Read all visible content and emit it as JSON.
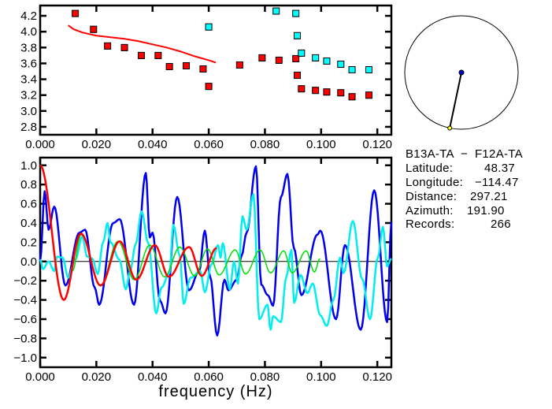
{
  "chart_data": [
    {
      "type": "scatter",
      "xlim": [
        0,
        0.125
      ],
      "ylim": [
        2.7,
        4.33
      ],
      "x_ticks": [
        "0.000",
        "0.020",
        "0.040",
        "0.060",
        "0.080",
        "0.100",
        "0.120"
      ],
      "y_ticks": [
        "2.8",
        "3.0",
        "3.2",
        "3.4",
        "3.6",
        "3.8",
        "4.0",
        "4.2"
      ],
      "grid": false,
      "series": [
        {
          "color": "#ff0000",
          "marker": "square",
          "points": [
            [
              0.0125,
              4.23
            ],
            [
              0.019,
              4.03
            ],
            [
              0.024,
              3.82
            ],
            [
              0.03,
              3.8
            ],
            [
              0.036,
              3.7
            ],
            [
              0.042,
              3.7
            ],
            [
              0.046,
              3.56
            ],
            [
              0.052,
              3.57
            ],
            [
              0.058,
              3.53
            ],
            [
              0.06,
              3.31
            ],
            [
              0.071,
              3.58
            ],
            [
              0.079,
              3.67
            ],
            [
              0.085,
              3.64
            ],
            [
              0.091,
              3.66
            ],
            [
              0.0915,
              3.45
            ],
            [
              0.093,
              3.28
            ],
            [
              0.098,
              3.26
            ],
            [
              0.102,
              3.24
            ],
            [
              0.107,
              3.23
            ],
            [
              0.111,
              3.18
            ],
            [
              0.117,
              3.2
            ]
          ]
        },
        {
          "color": "#00ffff",
          "marker": "square",
          "points": [
            [
              0.06,
              4.06
            ],
            [
              0.084,
              4.26
            ],
            [
              0.091,
              4.23
            ],
            [
              0.0915,
              3.95
            ],
            [
              0.093,
              3.73
            ],
            [
              0.098,
              3.67
            ],
            [
              0.102,
              3.63
            ],
            [
              0.107,
              3.59
            ],
            [
              0.111,
              3.52
            ],
            [
              0.117,
              3.52
            ]
          ]
        },
        {
          "color": "#ff0000",
          "marker": "line",
          "points": [
            [
              0.01,
              4.08
            ],
            [
              0.012,
              4.03
            ],
            [
              0.015,
              3.99
            ],
            [
              0.02,
              3.95
            ],
            [
              0.025,
              3.93
            ],
            [
              0.03,
              3.91
            ],
            [
              0.035,
              3.88
            ],
            [
              0.04,
              3.84
            ],
            [
              0.045,
              3.8
            ],
            [
              0.05,
              3.75
            ],
            [
              0.055,
              3.69
            ],
            [
              0.06,
              3.64
            ],
            [
              0.0625,
              3.61
            ]
          ]
        }
      ]
    },
    {
      "type": "line",
      "xlabel": "frequency (Hz)",
      "xlim": [
        0,
        0.125
      ],
      "ylim": [
        -1.1,
        1.08
      ],
      "x_ticks": [
        "0.000",
        "0.020",
        "0.040",
        "0.060",
        "0.080",
        "0.100",
        "0.120"
      ],
      "y_ticks": [
        "1.0",
        "0.8",
        "0.6",
        "0.4",
        "0.2",
        "0.0",
        "−0.2",
        "−0.4",
        "−0.6",
        "−0.8",
        "−1.0"
      ],
      "zero_line": true,
      "grid": false,
      "series": [
        {
          "color": "#0000ee",
          "points": [
            [
              0,
              0
            ],
            [
              0.0016,
              0.73
            ],
            [
              0.003,
              0.33
            ],
            [
              0.005,
              0.57
            ],
            [
              0.009,
              -0.25
            ],
            [
              0.014,
              0.3
            ],
            [
              0.016,
              0.33
            ],
            [
              0.0194,
              -0.27
            ],
            [
              0.021,
              -0.45
            ],
            [
              0.026,
              0.4
            ],
            [
              0.0283,
              0.44
            ],
            [
              0.0334,
              -0.45
            ],
            [
              0.0376,
              0.92
            ],
            [
              0.039,
              0.25
            ],
            [
              0.04,
              0.3
            ],
            [
              0.0427,
              -0.41
            ],
            [
              0.0446,
              -0.54
            ],
            [
              0.0488,
              0.67
            ],
            [
              0.053,
              -0.3
            ],
            [
              0.0566,
              -0.1
            ],
            [
              0.0586,
              0.32
            ],
            [
              0.0605,
              -0.16
            ],
            [
              0.063,
              -0.77
            ],
            [
              0.0656,
              -0.19
            ],
            [
              0.067,
              -0.3
            ],
            [
              0.07,
              -0.19
            ],
            [
              0.0717,
              0.06
            ],
            [
              0.0735,
              0.3
            ],
            [
              0.0768,
              0.99
            ],
            [
              0.0787,
              -0.24
            ],
            [
              0.081,
              -0.35
            ],
            [
              0.0829,
              -0.46
            ],
            [
              0.0857,
              0.67
            ],
            [
              0.088,
              0.91
            ],
            [
              0.0903,
              0.14
            ],
            [
              0.093,
              -0.35
            ],
            [
              0.0987,
              0.28
            ],
            [
              0.0997,
              0.32
            ],
            [
              0.1053,
              -0.6
            ],
            [
              0.1085,
              0.17
            ],
            [
              0.1141,
              -0.71
            ],
            [
              0.1189,
              0.74
            ],
            [
              0.1235,
              -0.63
            ],
            [
              0.125,
              0.41
            ]
          ]
        },
        {
          "color": "#00eeee",
          "points": [
            [
              0,
              0.02
            ],
            [
              0.001,
              -0.08
            ],
            [
              0.003,
              0.0
            ],
            [
              0.005,
              -0.1
            ],
            [
              0.006,
              0.05
            ],
            [
              0.008,
              0.04
            ],
            [
              0.01,
              -0.17
            ],
            [
              0.0125,
              0.02
            ],
            [
              0.015,
              0.26
            ],
            [
              0.0167,
              0.05
            ],
            [
              0.0185,
              0.03
            ],
            [
              0.0205,
              -0.13
            ],
            [
              0.0224,
              0.2
            ],
            [
              0.024,
              0.4
            ],
            [
              0.025,
              0.2
            ],
            [
              0.0282,
              0.02
            ],
            [
              0.0305,
              -0.29
            ],
            [
              0.032,
              -0.1
            ],
            [
              0.034,
              0.18
            ],
            [
              0.0361,
              0.52
            ],
            [
              0.0385,
              0.19
            ],
            [
              0.0413,
              -0.54
            ],
            [
              0.0432,
              -0.27
            ],
            [
              0.046,
              -0.12
            ],
            [
              0.0474,
              0.38
            ],
            [
              0.0497,
              0.06
            ],
            [
              0.0511,
              -0.44
            ],
            [
              0.0535,
              -0.17
            ],
            [
              0.057,
              -0.1
            ],
            [
              0.0586,
              -0.32
            ],
            [
              0.061,
              -0.03
            ],
            [
              0.0633,
              0.17
            ],
            [
              0.0642,
              0.04
            ],
            [
              0.065,
              0.19
            ],
            [
              0.0675,
              -0.29
            ],
            [
              0.069,
              0.0
            ],
            [
              0.0704,
              -0.23
            ],
            [
              0.072,
              0.47
            ],
            [
              0.0735,
              0.33
            ],
            [
              0.0759,
              0.7
            ],
            [
              0.078,
              -0.6
            ],
            [
              0.0809,
              -0.45
            ],
            [
              0.082,
              -0.71
            ],
            [
              0.0829,
              -0.57
            ],
            [
              0.0857,
              -0.63
            ],
            [
              0.0876,
              -0.16
            ],
            [
              0.0894,
              0.12
            ],
            [
              0.0904,
              -0.43
            ],
            [
              0.0927,
              -0.14
            ],
            [
              0.0951,
              -0.33
            ],
            [
              0.097,
              -0.23
            ],
            [
              0.0997,
              -0.56
            ],
            [
              0.102,
              -0.67
            ],
            [
              0.1044,
              -0.4
            ],
            [
              0.1067,
              0.04
            ],
            [
              0.108,
              -0.12
            ],
            [
              0.1113,
              0.42
            ],
            [
              0.1146,
              -0.18
            ],
            [
              0.1174,
              -0.6
            ],
            [
              0.1202,
              0.04
            ],
            [
              0.122,
              0.36
            ],
            [
              0.1235,
              -0.05
            ],
            [
              0.125,
              0.03
            ]
          ]
        },
        {
          "color": "#00dd00",
          "points": [
            [
              0.0115,
              -0.1
            ],
            [
              0.0145,
              0.28
            ],
            [
              0.0215,
              -0.25
            ],
            [
              0.0277,
              0.21
            ],
            [
              0.0335,
              -0.19
            ],
            [
              0.039,
              0.17
            ],
            [
              0.0443,
              -0.16
            ],
            [
              0.0497,
              0.15
            ],
            [
              0.055,
              -0.15
            ],
            [
              0.0596,
              0.13
            ],
            [
              0.0637,
              -0.14
            ],
            [
              0.0694,
              0.12
            ],
            [
              0.0731,
              -0.13
            ],
            [
              0.0783,
              0.12
            ],
            [
              0.082,
              -0.12
            ],
            [
              0.0867,
              0.11
            ],
            [
              0.0897,
              -0.12
            ],
            [
              0.0947,
              0.11
            ],
            [
              0.0976,
              -0.11
            ],
            [
              0.0996,
              0.03
            ]
          ]
        },
        {
          "color": "#ff0000",
          "points": [
            [
              0,
              1.0
            ],
            [
              0.0084,
              -0.4
            ],
            [
              0.0145,
              0.29
            ],
            [
              0.0215,
              -0.25
            ],
            [
              0.0283,
              0.21
            ],
            [
              0.0342,
              -0.19
            ],
            [
              0.0408,
              0.17
            ],
            [
              0.0458,
              -0.16
            ],
            [
              0.053,
              0.15
            ],
            [
              0.0575,
              -0.15
            ],
            [
              0.0628,
              0.14
            ]
          ]
        }
      ]
    }
  ],
  "info": {
    "title": "B13A-TA  −  F12A-TA",
    "rows": [
      {
        "label": "Latitude:",
        "value": "48.37"
      },
      {
        "label": "Longitude:",
        "value": "−114.47"
      },
      {
        "label": "Distance:",
        "value": "297.21"
      },
      {
        "label": "Azimuth:",
        "value": "191.90"
      },
      {
        "label": "Records:",
        "value": "266"
      }
    ]
  },
  "map": {
    "azimuth": 191.9,
    "center_color": "#0000cc",
    "station_color": "#ffff00"
  }
}
